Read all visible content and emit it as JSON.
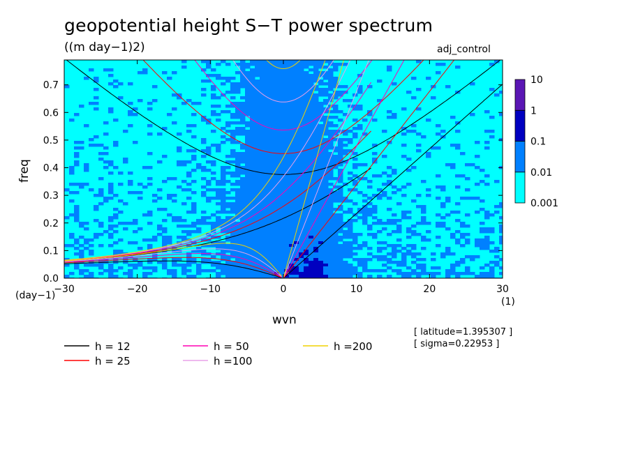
{
  "title": "geopotential height S−T power spectrum",
  "units": "((m day−1)2)",
  "run_name": "adj_control",
  "info": [
    "[ latitude=1.395307 ]",
    "[ sigma=0.22953 ]"
  ],
  "x_unit_left": "(day−1)",
  "x_unit_right": "(1)",
  "chart_data": {
    "type": "heatmap",
    "xlabel": "wvn",
    "ylabel": "freq",
    "xlim": [
      -30,
      30
    ],
    "ylim": [
      0.0,
      0.79
    ],
    "xticks": [
      -30,
      -20,
      -10,
      0,
      10,
      20,
      30
    ],
    "xtick_labels": [
      "−30",
      "−20",
      "−10",
      "0",
      "10",
      "20",
      "30"
    ],
    "yticks": [
      0.0,
      0.1,
      0.2,
      0.3,
      0.4,
      0.5,
      0.6,
      0.7
    ],
    "ytick_labels": [
      "0.0",
      "0.1",
      "0.2",
      "0.3",
      "0.4",
      "0.5",
      "0.6",
      "0.7"
    ],
    "colorbar": {
      "levels": [
        0.001,
        0.01,
        0.1,
        1,
        10
      ],
      "labels": [
        "0.001",
        "0.01",
        "0.1",
        "1",
        "10"
      ],
      "colors": [
        "#00ffff",
        "#0080ff",
        "#0000c0",
        "#5a16b4"
      ],
      "below_color": "#ffffff"
    },
    "dispersion_curves": [
      {
        "name": "h = 12",
        "h": 12,
        "color": "#000000"
      },
      {
        "name": "h = 25",
        "h": 25,
        "color": "#ff0000"
      },
      {
        "name": "h = 50",
        "h": 50,
        "color": "#ff00b4"
      },
      {
        "name": "h =100",
        "h": 100,
        "color": "#e8a0e8"
      },
      {
        "name": "h =200",
        "h": 200,
        "color": "#f0d200"
      }
    ],
    "grid": false,
    "legend_position": "bottom-left"
  }
}
